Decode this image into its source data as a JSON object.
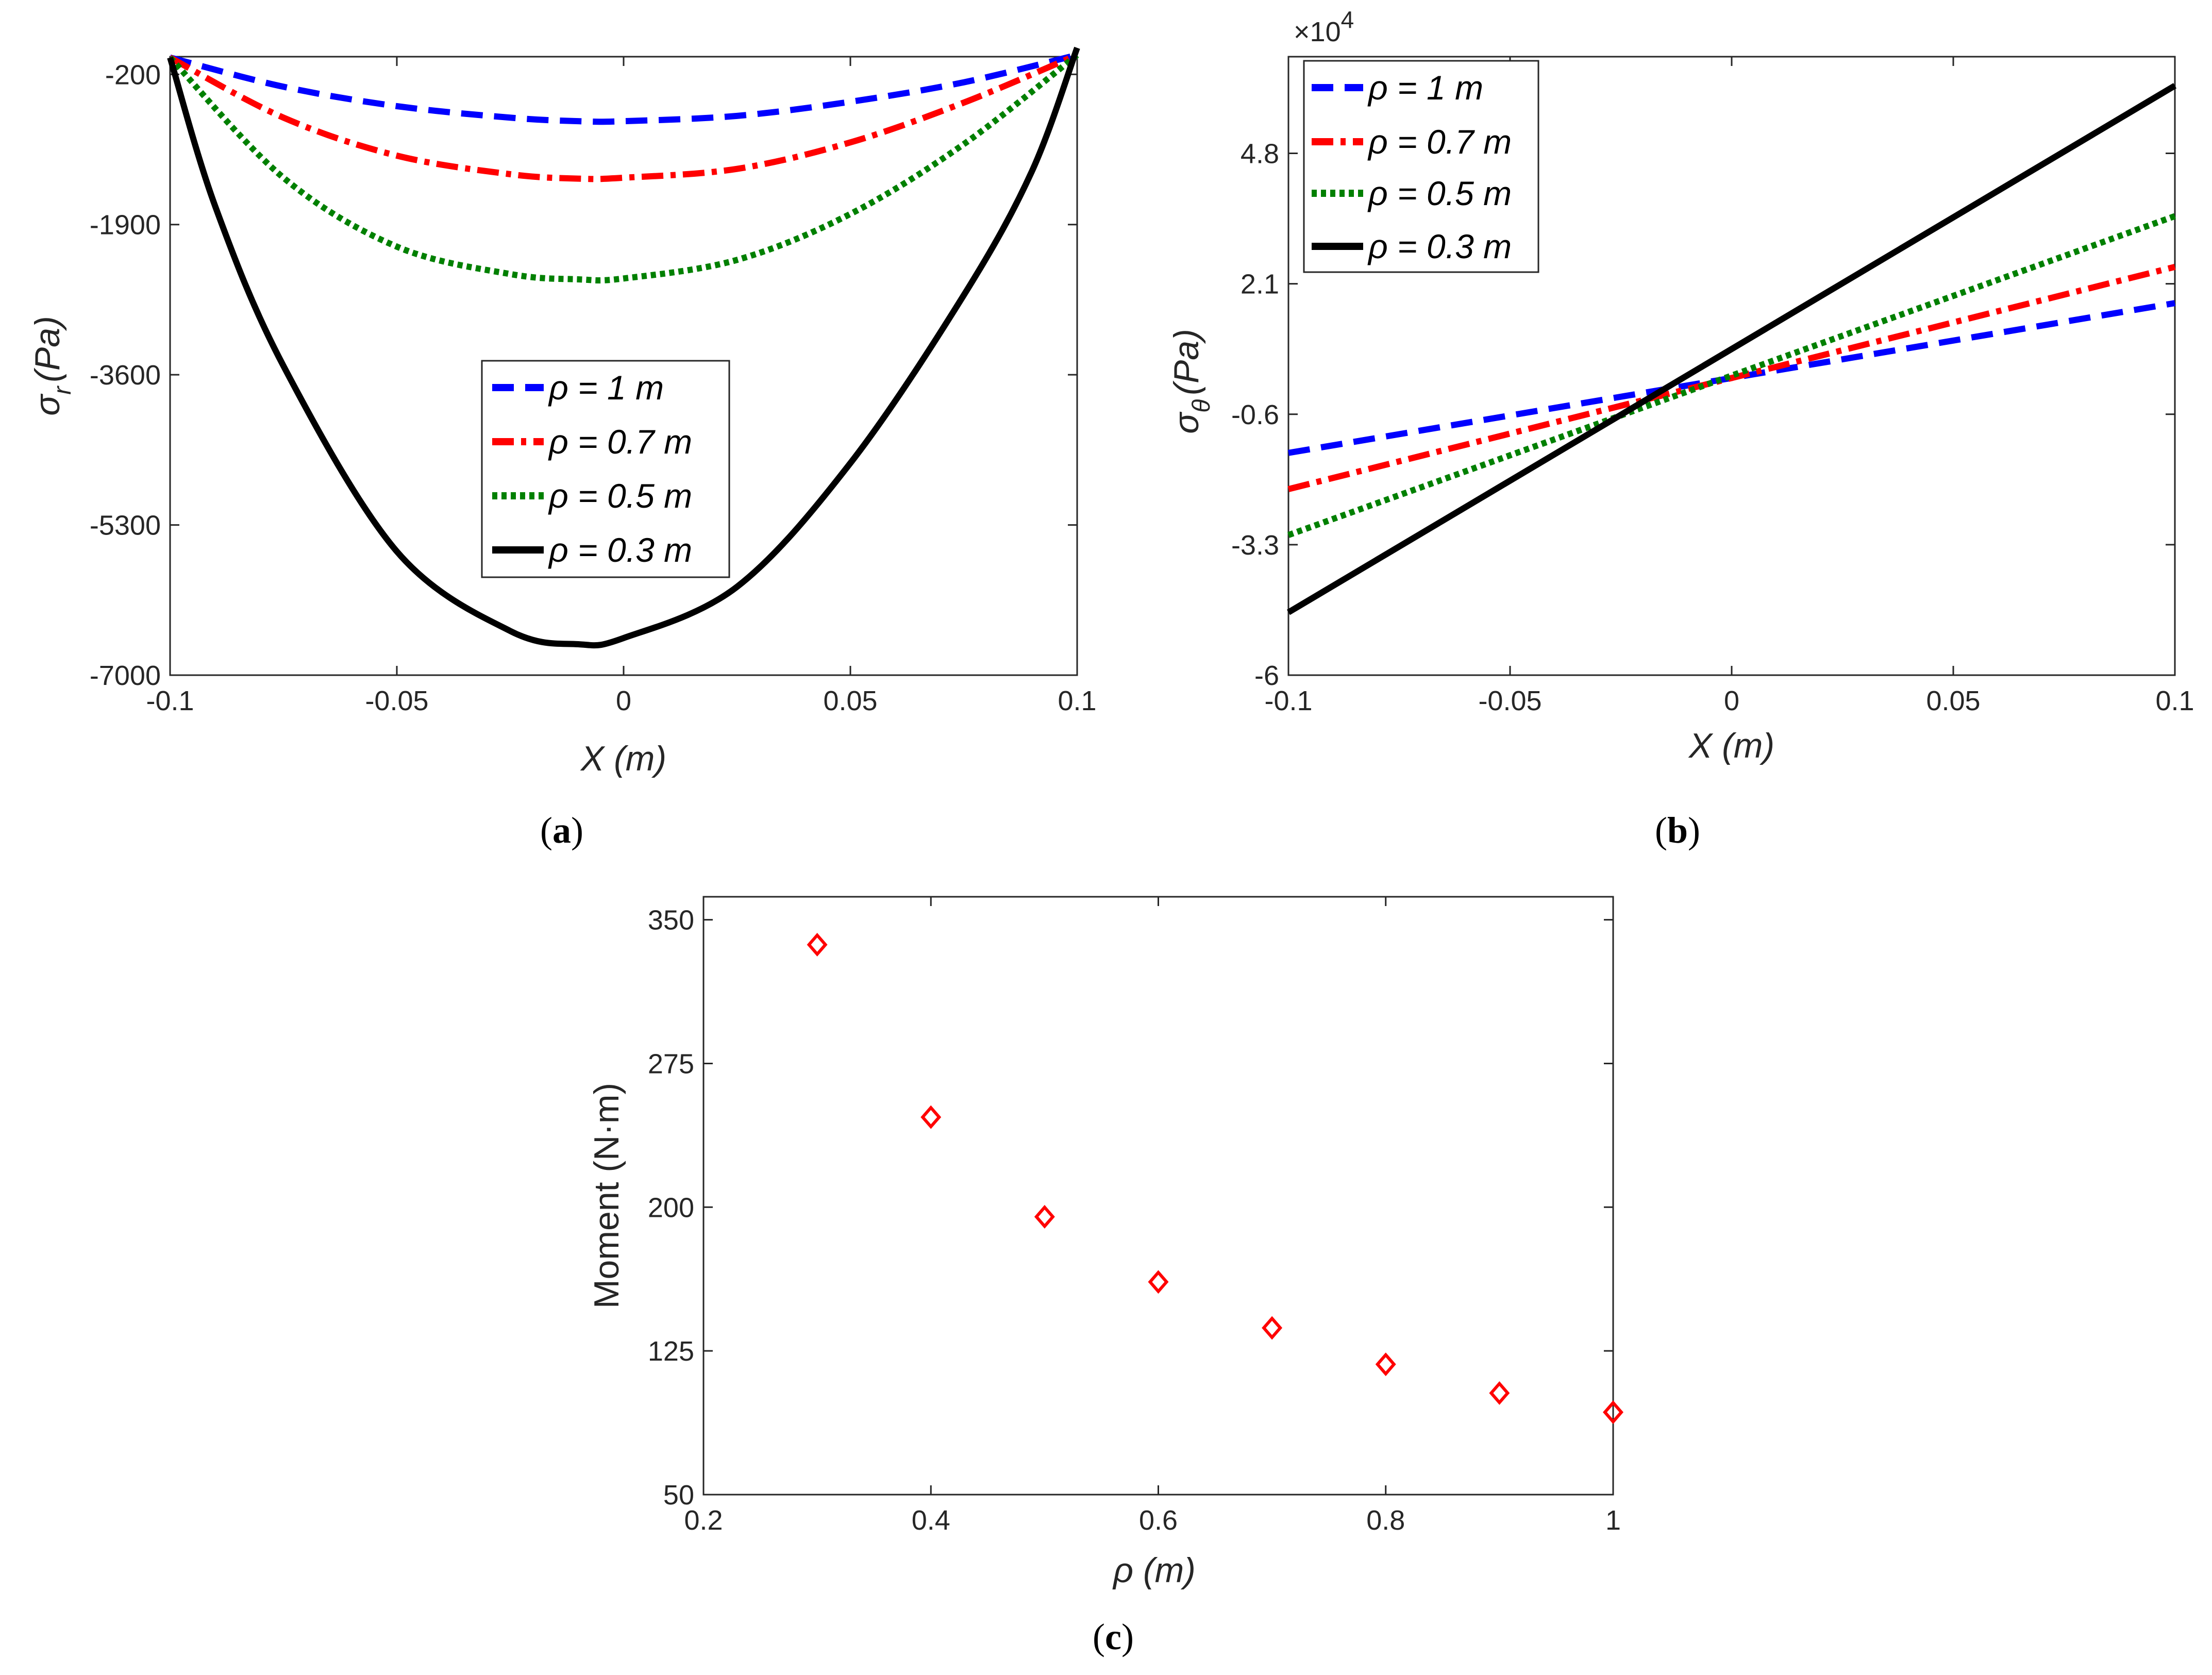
{
  "chart_data": [
    {
      "id": "a",
      "type": "line",
      "panel_label": "a",
      "xlabel": "X (m)",
      "ylabel": "σ_r (Pa)",
      "ylabel_main": "σ",
      "ylabel_sub": "r",
      "ylabel_unit": "(Pa)",
      "xlim": [
        -0.1,
        0.1
      ],
      "ylim": [
        -7000,
        0
      ],
      "xticks": [
        -0.1,
        -0.05,
        0,
        0.05,
        0.1
      ],
      "xtick_labels": [
        "-0.1",
        "-0.05",
        "0",
        "0.05",
        "0.1"
      ],
      "yticks": [
        -200,
        -1900,
        -3600,
        -5300,
        -7000
      ],
      "ytick_labels": [
        "-200",
        "-1900",
        "-3600",
        "-5300",
        "-7000"
      ],
      "legend_position": "center",
      "series": [
        {
          "name": "ρ = 1 m",
          "rho": "ρ",
          "rest": " = 1 m",
          "color": "#0000ff",
          "style": "dash",
          "x": [
            -0.1,
            -0.075,
            -0.05,
            -0.025,
            -0.01,
            0,
            0.025,
            0.05,
            0.075,
            0.1
          ],
          "y": [
            -10,
            -340,
            -560,
            -690,
            -730,
            -730,
            -670,
            -510,
            -290,
            20
          ]
        },
        {
          "name": "ρ = 0.7 m",
          "rho": "ρ",
          "rest": " = 0.7 m",
          "color": "#ff0000",
          "style": "dashdot",
          "x": [
            -0.1,
            -0.075,
            -0.05,
            -0.025,
            -0.01,
            0,
            0.025,
            0.05,
            0.075,
            0.1
          ],
          "y": [
            -10,
            -690,
            -1120,
            -1330,
            -1380,
            -1370,
            -1270,
            -970,
            -520,
            20
          ]
        },
        {
          "name": "ρ = 0.5 m",
          "rho": "ρ",
          "rest": " = 0.5 m",
          "color": "#008000",
          "style": "dot",
          "x": [
            -0.1,
            -0.075,
            -0.05,
            -0.025,
            -0.01,
            0,
            0.025,
            0.05,
            0.075,
            0.1
          ],
          "y": [
            -10,
            -1370,
            -2150,
            -2460,
            -2520,
            -2510,
            -2300,
            -1780,
            -990,
            20
          ]
        },
        {
          "name": "ρ = 0.3 m",
          "rho": "ρ",
          "rest": " = 0.3 m",
          "color": "#000000",
          "style": "solid",
          "x": [
            -0.1,
            -0.09,
            -0.075,
            -0.05,
            -0.025,
            -0.01,
            0,
            0.025,
            0.05,
            0.075,
            0.09,
            0.1
          ],
          "y": [
            -10,
            -1700,
            -3500,
            -5600,
            -6500,
            -6650,
            -6580,
            -6000,
            -4600,
            -2700,
            -1300,
            100
          ]
        }
      ]
    },
    {
      "id": "b",
      "type": "line",
      "panel_label": "b",
      "xlabel": "X (m)",
      "ylabel": "σ_θ (Pa)",
      "ylabel_main": "σ",
      "ylabel_sub": "θ",
      "ylabel_unit": "(Pa)",
      "multiplier_base": "×10",
      "multiplier_exp": "4",
      "xlim": [
        -0.1,
        0.1
      ],
      "ylim": [
        -6,
        6.8
      ],
      "xticks": [
        -0.1,
        -0.05,
        0,
        0.05,
        0.1
      ],
      "xtick_labels": [
        "-0.1",
        "-0.05",
        "0",
        "0.05",
        "0.1"
      ],
      "yticks": [
        4.8,
        2.1,
        -0.6,
        -3.3,
        -6
      ],
      "ytick_labels": [
        "4.8",
        "2.1",
        "-0.6",
        "-3.3",
        "-6"
      ],
      "legend_position": "top-left",
      "series": [
        {
          "name": "ρ = 1 m",
          "rho": "ρ",
          "rest": " = 1 m",
          "color": "#0000ff",
          "style": "dash",
          "x": [
            -0.1,
            0.1
          ],
          "y": [
            -1.4,
            1.7
          ]
        },
        {
          "name": "ρ = 0.7 m",
          "rho": "ρ",
          "rest": " = 0.7 m",
          "color": "#ff0000",
          "style": "dashdot",
          "x": [
            -0.1,
            0.1
          ],
          "y": [
            -2.15,
            2.45
          ]
        },
        {
          "name": "ρ = 0.5 m",
          "rho": "ρ",
          "rest": " = 0.5 m",
          "color": "#008000",
          "style": "dot",
          "x": [
            -0.1,
            0.1
          ],
          "y": [
            -3.1,
            3.5
          ]
        },
        {
          "name": "ρ = 0.3 m",
          "rho": "ρ",
          "rest": " = 0.3 m",
          "color": "#000000",
          "style": "solid",
          "x": [
            -0.1,
            0.1
          ],
          "y": [
            -4.7,
            6.2
          ]
        }
      ]
    },
    {
      "id": "c",
      "type": "scatter",
      "panel_label": "c",
      "xlabel": "ρ (m)",
      "xlabel_main": "ρ",
      "xlabel_unit": " (m)",
      "ylabel": "Moment (N·m)",
      "xlim": [
        0.2,
        1
      ],
      "ylim": [
        50,
        362
      ],
      "xticks": [
        0.2,
        0.4,
        0.6,
        0.8,
        1
      ],
      "xtick_labels": [
        "0.2",
        "0.4",
        "0.6",
        "0.8",
        "1"
      ],
      "yticks": [
        350,
        275,
        200,
        125,
        50
      ],
      "ytick_labels": [
        "350",
        "275",
        "200",
        "125",
        "50"
      ],
      "marker": "diamond",
      "color": "#ff0000",
      "x": [
        0.3,
        0.4,
        0.5,
        0.6,
        0.7,
        0.8,
        0.9,
        1.0
      ],
      "y": [
        337,
        247,
        195,
        161,
        137,
        118,
        103,
        93
      ]
    }
  ]
}
